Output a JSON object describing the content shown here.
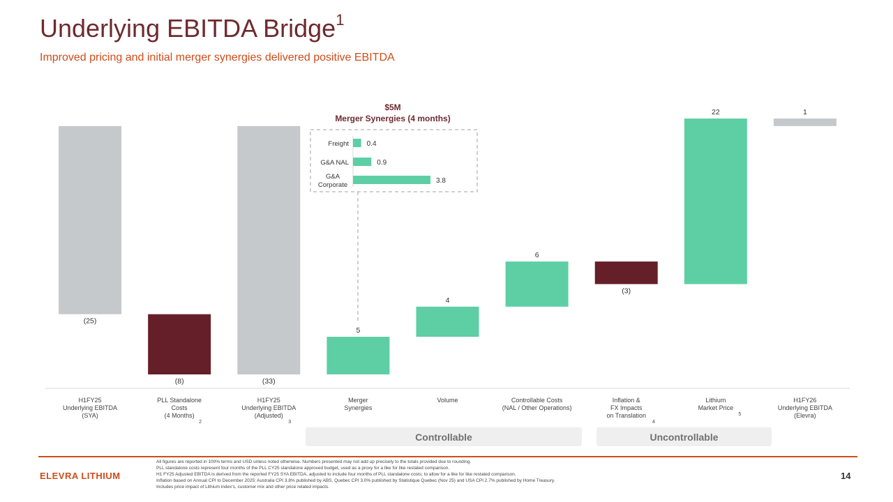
{
  "header": {
    "title": "Underlying EBITDA Bridge",
    "title_superscript": "1",
    "subtitle": "Improved pricing and initial merger synergies delivered positive EBITDA"
  },
  "chart_data": [
    {
      "type": "waterfall",
      "title": "",
      "categories": [
        {
          "label_lines": [
            "H1FY25",
            "Underlying EBITDA",
            "(SYA)"
          ],
          "footnote": ""
        },
        {
          "label_lines": [
            "PLL Standalone",
            "Costs",
            "(4 Months)"
          ],
          "footnote": "2"
        },
        {
          "label_lines": [
            "H1FY25",
            "Underlying EBITDA",
            "(Adjusted)"
          ],
          "footnote": "3"
        },
        {
          "label_lines": [
            "Merger",
            "Synergies"
          ],
          "footnote": ""
        },
        {
          "label_lines": [
            "Volume"
          ],
          "footnote": ""
        },
        {
          "label_lines": [
            "Controllable Costs",
            "(NAL / Other Operations)"
          ],
          "footnote": ""
        },
        {
          "label_lines": [
            "Inflation &",
            "FX Impacts",
            "on Translation"
          ],
          "footnote": "4"
        },
        {
          "label_lines": [
            "Lithium",
            "Market Price"
          ],
          "footnote": "5"
        },
        {
          "label_lines": [
            "H1FY26",
            "Underlying EBITDA",
            "(Elevra)"
          ],
          "footnote": ""
        }
      ],
      "bars": [
        {
          "kind": "total",
          "value": -25,
          "label": "(25)"
        },
        {
          "kind": "delta",
          "value": -8,
          "label": "(8)"
        },
        {
          "kind": "total",
          "value": -33,
          "label": "(33)"
        },
        {
          "kind": "delta",
          "value": 5,
          "label": "5"
        },
        {
          "kind": "delta",
          "value": 4,
          "label": "4"
        },
        {
          "kind": "delta",
          "value": 6,
          "label": "6"
        },
        {
          "kind": "delta",
          "value": -3,
          "label": "(3)"
        },
        {
          "kind": "delta",
          "value": 22,
          "label": "22"
        },
        {
          "kind": "total",
          "value": 1,
          "label": "1"
        }
      ],
      "ylim": [
        -33,
        1
      ],
      "units": "USD M",
      "colors": {
        "total": "#c5c9cb",
        "increase": "#5ecfa4",
        "decrease": "#651f28"
      }
    },
    {
      "type": "bar",
      "orientation": "horizontal",
      "title": "$5M",
      "subtitle": "Merger Synergies (4 months)",
      "categories": [
        {
          "label_lines": [
            "Freight"
          ]
        },
        {
          "label_lines": [
            "G&A NAL"
          ]
        },
        {
          "label_lines": [
            "G&A",
            "Corporate"
          ]
        }
      ],
      "values": [
        0.4,
        0.9,
        3.8
      ],
      "value_labels": [
        "0.4",
        "0.9",
        "3.8"
      ],
      "xlim": [
        0,
        3.8
      ],
      "color": "#5ecfa4"
    }
  ],
  "groups": {
    "controllable": "Controllable",
    "uncontrollable": "Uncontrollable"
  },
  "footer": {
    "brand": "ELEVRA LITHIUM",
    "page_number": "14",
    "notes": [
      "All figures are reported in 100% terms and USD unless noted otherwise. Numbers presented may not add up precisely to the totals provided due to rounding.",
      "PLL standalone costs represent four months of the PLL CY25 standalone approved budget, used as a proxy for a like for like restated comparison.",
      "H1 FY25 Adjusted EBITDA is derived from the reported FY25 SYA EBITDA, adjusted to include four months of PLL standalone costs; to allow for a like for like restated comparison.",
      "Inflation based on Annual CPI to December 2025; Australia CPI 3.8% published by ABS, Quebec CPI 3.0% published by Statistique Quebec (Nov 25) and USA CPI 2.7% published by Home Treasury.",
      "Includes price impact of Lithium index's, customer mix and other price related impacts."
    ]
  }
}
